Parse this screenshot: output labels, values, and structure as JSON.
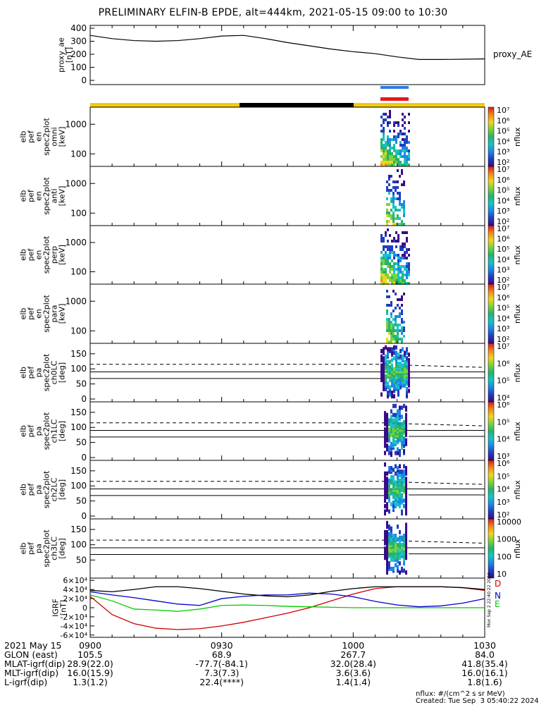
{
  "title": "PRELIMINARY ELFIN-B EPDE, alt=444km, 2021-05-15 09:00 to 10:30",
  "colors": {
    "sun": "#f2cc0c",
    "shadow": "#000000",
    "blue_bar": "#2c7be5",
    "red_bar": "#e31a1c",
    "igrf_D": "#cc0000",
    "igrf_N": "#0000cc",
    "igrf_E": "#00cc00"
  },
  "chart_data": [
    {
      "type": "line",
      "ylabel": "proxy_ae [nT]",
      "ylim": [
        0,
        400
      ],
      "yticks": [
        0,
        100,
        200,
        300,
        400
      ],
      "series": [
        {
          "name": "proxy_AE",
          "x": [
            0,
            5,
            10,
            15,
            20,
            25,
            30,
            35,
            40,
            45,
            50,
            55,
            60,
            65,
            70,
            75,
            80,
            85,
            90
          ],
          "values": [
            345,
            320,
            305,
            300,
            305,
            320,
            340,
            345,
            320,
            290,
            265,
            240,
            220,
            205,
            180,
            160,
            160,
            162,
            165
          ]
        }
      ]
    },
    {
      "type": "heatmap",
      "ylabel": "elb pef en spec2plot omni [keV]",
      "yscale": "log",
      "yticks": [
        "100",
        "1000"
      ],
      "colorbar_label": "nflux",
      "colorbar_ticks": [
        "10²",
        "10³",
        "10⁴",
        "10⁵",
        "10⁶",
        "10⁷"
      ]
    },
    {
      "type": "heatmap",
      "ylabel": "elb pef en spec2plot anti [keV]",
      "yscale": "log",
      "yticks": [
        "100",
        "1000"
      ],
      "colorbar_label": "nflux",
      "colorbar_ticks": [
        "10²",
        "10³",
        "10⁴",
        "10⁵",
        "10⁶",
        "10⁷"
      ]
    },
    {
      "type": "heatmap",
      "ylabel": "elb pef en spec2plot perp [keV]",
      "yscale": "log",
      "yticks": [
        "100",
        "1000"
      ],
      "colorbar_label": "nflux",
      "colorbar_ticks": [
        "10²",
        "10³",
        "10⁴",
        "10⁵",
        "10⁶",
        "10⁷"
      ]
    },
    {
      "type": "heatmap",
      "ylabel": "elb pef en spec2plot para [keV]",
      "yscale": "log",
      "yticks": [
        "100",
        "1000"
      ],
      "colorbar_label": "nflux",
      "colorbar_ticks": [
        "10²",
        "10³",
        "10⁴",
        "10⁵",
        "10⁶",
        "10⁷"
      ]
    },
    {
      "type": "heatmap",
      "ylabel": "elb pef pa spec2plot ch0LC [deg]",
      "ylim": [
        0,
        180
      ],
      "yticks": [
        "0",
        "50",
        "100",
        "150"
      ],
      "colorbar_label": "nflux",
      "colorbar_ticks": [
        "10⁴",
        "10⁵",
        "10⁶",
        "10⁷"
      ]
    },
    {
      "type": "heatmap",
      "ylabel": "elb pef pa spec2plot ch1LC [deg]",
      "ylim": [
        0,
        180
      ],
      "yticks": [
        "0",
        "50",
        "100",
        "150"
      ],
      "colorbar_label": "nflux",
      "colorbar_ticks": [
        "10³",
        "10⁴",
        "10⁵",
        "10⁶"
      ]
    },
    {
      "type": "heatmap",
      "ylabel": "elb pef pa spec2plot ch2LC [deg]",
      "ylim": [
        0,
        180
      ],
      "yticks": [
        "0",
        "50",
        "100",
        "150"
      ],
      "colorbar_label": "nflux",
      "colorbar_ticks": [
        "10²",
        "10³",
        "10⁴",
        "10⁵",
        "10⁶"
      ]
    },
    {
      "type": "heatmap",
      "ylabel": "elb pef pa spec2plot ch3LC [deg]",
      "ylim": [
        0,
        180
      ],
      "yticks": [
        "50",
        "100",
        "150"
      ],
      "colorbar_label": "nflux",
      "colorbar_ticks": [
        "10",
        "100",
        "1000",
        "10000"
      ]
    },
    {
      "type": "line",
      "ylabel": "IGRF [nT]",
      "ylim": [
        -65000,
        65000
      ],
      "yticks": [
        "-6×10⁴",
        "-4×10⁴",
        "-2×10⁴",
        "0",
        "2×10⁴",
        "4×10⁴",
        "6×10⁴"
      ],
      "ytick_values": [
        -60000,
        -40000,
        -20000,
        0,
        20000,
        40000,
        60000
      ],
      "side_label": "Mon Sep  2 22:40:22 2024",
      "series": [
        {
          "name": "D",
          "x": [
            0,
            5,
            10,
            15,
            20,
            25,
            30,
            35,
            40,
            45,
            50,
            55,
            60,
            65,
            70,
            75,
            80,
            85,
            90
          ],
          "values": [
            25000,
            -15000,
            -35000,
            -45000,
            -48000,
            -46000,
            -40000,
            -32000,
            -22000,
            -12000,
            0,
            15000,
            30000,
            42000,
            46000,
            46000,
            46000,
            44000,
            38000
          ]
        },
        {
          "name": "N",
          "x": [
            0,
            5,
            10,
            15,
            20,
            25,
            30,
            35,
            40,
            45,
            50,
            55,
            60,
            65,
            70,
            75,
            80,
            85,
            90
          ],
          "values": [
            35000,
            28000,
            22000,
            15000,
            8000,
            5000,
            20000,
            25000,
            28000,
            28000,
            32000,
            30000,
            24000,
            14000,
            6000,
            2000,
            4000,
            10000,
            20000
          ]
        },
        {
          "name": "E",
          "x": [
            0,
            5,
            10,
            15,
            20,
            25,
            30,
            35,
            40,
            45,
            50,
            55,
            60,
            65,
            70,
            75,
            80,
            85,
            90
          ],
          "values": [
            28000,
            15000,
            -3000,
            -5000,
            -8000,
            -3000,
            5000,
            6000,
            5000,
            3000,
            2000,
            1000,
            0,
            0,
            0,
            0,
            0,
            0,
            0
          ]
        },
        {
          "name": "",
          "x": [
            0,
            5,
            10,
            15,
            20,
            25,
            30,
            35,
            40,
            45,
            50,
            55,
            60,
            65,
            70,
            75,
            80,
            85,
            90
          ],
          "values": [
            38000,
            35000,
            40000,
            46000,
            46000,
            42000,
            36000,
            30000,
            26000,
            24000,
            28000,
            36000,
            42000,
            46000,
            46000,
            46000,
            46000,
            44000,
            40000
          ]
        }
      ]
    }
  ],
  "xaxis": {
    "rows": [
      {
        "label": "2021 May 15",
        "values": [
          "0900",
          "0930",
          "1000",
          "1030"
        ]
      },
      {
        "label": "GLON (east)",
        "values": [
          "105.5",
          "68.9",
          "267.7",
          "84.0"
        ]
      },
      {
        "label": "MLAT-igrf(dip)",
        "values": [
          "28.9(22.0)",
          "-77.7(-84.1)",
          "32.0(28.4)",
          "41.8(35.4)"
        ]
      },
      {
        "label": "MLT-igrf(dip)",
        "values": [
          "16.0(15.9)",
          "7.3(7.3)",
          "3.6(3.6)",
          "16.0(16.1)"
        ]
      },
      {
        "label": "L-igrf(dip)",
        "values": [
          "1.3(1.2)",
          "22.4(****)",
          "1.4(1.4)",
          "1.8(1.6)"
        ]
      }
    ]
  },
  "footer": {
    "units": "nflux: #/(cm^2 s sr MeV)",
    "created": "Created: Tue Sep  3 05:40:22 2024"
  }
}
